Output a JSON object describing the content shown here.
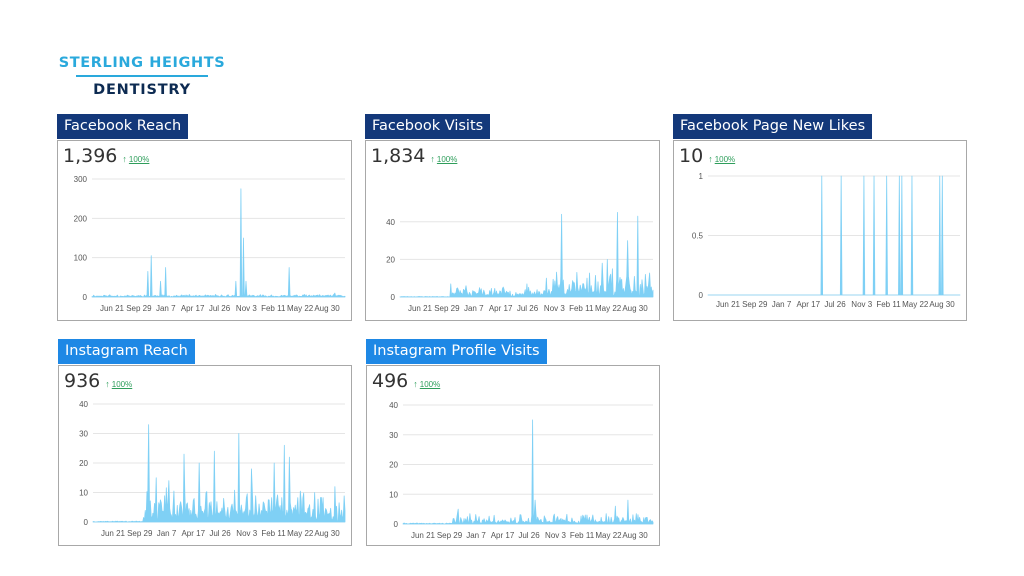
{
  "logo": {
    "line1": "STERLING HEIGHTS",
    "line2": "DENTISTRY"
  },
  "colors": {
    "title_dark": "#13387a",
    "title_light": "#1e88e5",
    "series": "#7fd0f5",
    "trend_positive": "#2e9e5b",
    "gridline": "#e5e5e5",
    "logo_primary": "#2aa9dc",
    "logo_secondary": "#0d2b52"
  },
  "cards": [
    {
      "id": "facebook-reach",
      "title": "Facebook Reach",
      "value": "1,396",
      "change": "100%",
      "trend_icon": "up-arrow-icon",
      "title_style": "dark"
    },
    {
      "id": "facebook-visits",
      "title": "Facebook Visits",
      "value": "1,834",
      "change": "100%",
      "trend_icon": "up-arrow-icon",
      "title_style": "dark"
    },
    {
      "id": "facebook-page-new-likes",
      "title": "Facebook Page New Likes",
      "value": "10",
      "change": "100%",
      "trend_icon": "up-arrow-icon",
      "title_style": "dark"
    },
    {
      "id": "instagram-reach",
      "title": "Instagram Reach",
      "value": "936",
      "change": "100%",
      "trend_icon": "up-arrow-icon",
      "title_style": "light"
    },
    {
      "id": "instagram-profile-visits",
      "title": "Instagram Profile Visits",
      "value": "496",
      "change": "100%",
      "trend_icon": "up-arrow-icon",
      "title_style": "light"
    }
  ],
  "chart_data": [
    {
      "type": "area",
      "card": "facebook-reach",
      "ylim": [
        0,
        300
      ],
      "yticks": [
        "0",
        "100",
        "200",
        "300"
      ],
      "xticks": [
        "Jun 21",
        "Sep 29",
        "Jan 7",
        "Apr 17",
        "Jul 26",
        "Nov 3",
        "Feb 11",
        "May 22",
        "Aug 30"
      ],
      "grid": true,
      "noise": {
        "start": 0.0,
        "level": 3,
        "amp": 4,
        "seed": 11
      },
      "spikes": [
        [
          0.22,
          65
        ],
        [
          0.235,
          105
        ],
        [
          0.27,
          40
        ],
        [
          0.29,
          75
        ],
        [
          0.57,
          40
        ],
        [
          0.59,
          275
        ],
        [
          0.6,
          150
        ],
        [
          0.61,
          40
        ],
        [
          0.78,
          75
        ],
        [
          0.96,
          10
        ]
      ]
    },
    {
      "type": "area",
      "card": "facebook-visits",
      "ylim": [
        0,
        50
      ],
      "yticks": [
        "0",
        "20",
        "40"
      ],
      "xticks": [
        "Jun 21",
        "Sep 29",
        "Jan 7",
        "Apr 17",
        "Jul 26",
        "Nov 3",
        "Feb 11",
        "May 22",
        "Aug 30"
      ],
      "grid": true,
      "noise": {
        "start": 0.2,
        "level": 2,
        "amp": 4,
        "seed": 23,
        "ramp_start": 0.6,
        "ramp_level": 4,
        "ramp_amp": 12
      },
      "spikes": [
        [
          0.2,
          7
        ],
        [
          0.26,
          6
        ],
        [
          0.5,
          7
        ],
        [
          0.58,
          10
        ],
        [
          0.64,
          44
        ],
        [
          0.7,
          12
        ],
        [
          0.74,
          10
        ],
        [
          0.8,
          18
        ],
        [
          0.82,
          20
        ],
        [
          0.84,
          15
        ],
        [
          0.86,
          45
        ],
        [
          0.9,
          30
        ],
        [
          0.94,
          43
        ],
        [
          0.97,
          12
        ]
      ]
    },
    {
      "type": "area",
      "card": "facebook-page-new-likes",
      "ylim": [
        0,
        1
      ],
      "yticks": [
        "0",
        "0.5",
        "1"
      ],
      "xticks": [
        "Jun 21",
        "Sep 29",
        "Jan 7",
        "Apr 17",
        "Jul 26",
        "Nov 3",
        "Feb 11",
        "May 22",
        "Aug 30"
      ],
      "grid": true,
      "noise": {
        "start": 0.0,
        "level": 0,
        "amp": 0,
        "seed": 5
      },
      "spikes": [
        [
          0.45,
          1
        ],
        [
          0.53,
          1
        ],
        [
          0.62,
          1
        ],
        [
          0.66,
          1
        ],
        [
          0.71,
          1
        ],
        [
          0.76,
          1
        ],
        [
          0.77,
          1
        ],
        [
          0.81,
          1
        ],
        [
          0.92,
          1
        ],
        [
          0.93,
          1
        ]
      ]
    },
    {
      "type": "area",
      "card": "instagram-reach",
      "ylim": [
        0,
        40
      ],
      "yticks": [
        "0",
        "10",
        "20",
        "30",
        "40"
      ],
      "xticks": [
        "Jun 21",
        "Sep 29",
        "Jan 7",
        "Apr 17",
        "Jul 26",
        "Nov 3",
        "Feb 11",
        "May 22",
        "Aug 30"
      ],
      "grid": true,
      "noise": {
        "start": 0.2,
        "level": 4,
        "amp": 8,
        "seed": 37
      },
      "spikes": [
        [
          0.22,
          33
        ],
        [
          0.25,
          15
        ],
        [
          0.3,
          14
        ],
        [
          0.36,
          23
        ],
        [
          0.42,
          20
        ],
        [
          0.48,
          24
        ],
        [
          0.52,
          8
        ],
        [
          0.58,
          30
        ],
        [
          0.63,
          18
        ],
        [
          0.72,
          20
        ],
        [
          0.76,
          26
        ],
        [
          0.78,
          22
        ],
        [
          0.88,
          10
        ],
        [
          0.96,
          12
        ]
      ]
    },
    {
      "type": "area",
      "card": "instagram-profile-visits",
      "ylim": [
        0,
        40
      ],
      "yticks": [
        "0",
        "10",
        "20",
        "30",
        "40"
      ],
      "xticks": [
        "Jun 21",
        "Sep 29",
        "Jan 7",
        "Apr 17",
        "Jul 26",
        "Nov 3",
        "Feb 11",
        "May 22",
        "Aug 30"
      ],
      "grid": true,
      "noise": {
        "start": 0.2,
        "level": 0.8,
        "amp": 3,
        "seed": 41
      },
      "spikes": [
        [
          0.22,
          5
        ],
        [
          0.52,
          35
        ],
        [
          0.53,
          8
        ],
        [
          0.85,
          6
        ],
        [
          0.9,
          8
        ]
      ]
    }
  ]
}
